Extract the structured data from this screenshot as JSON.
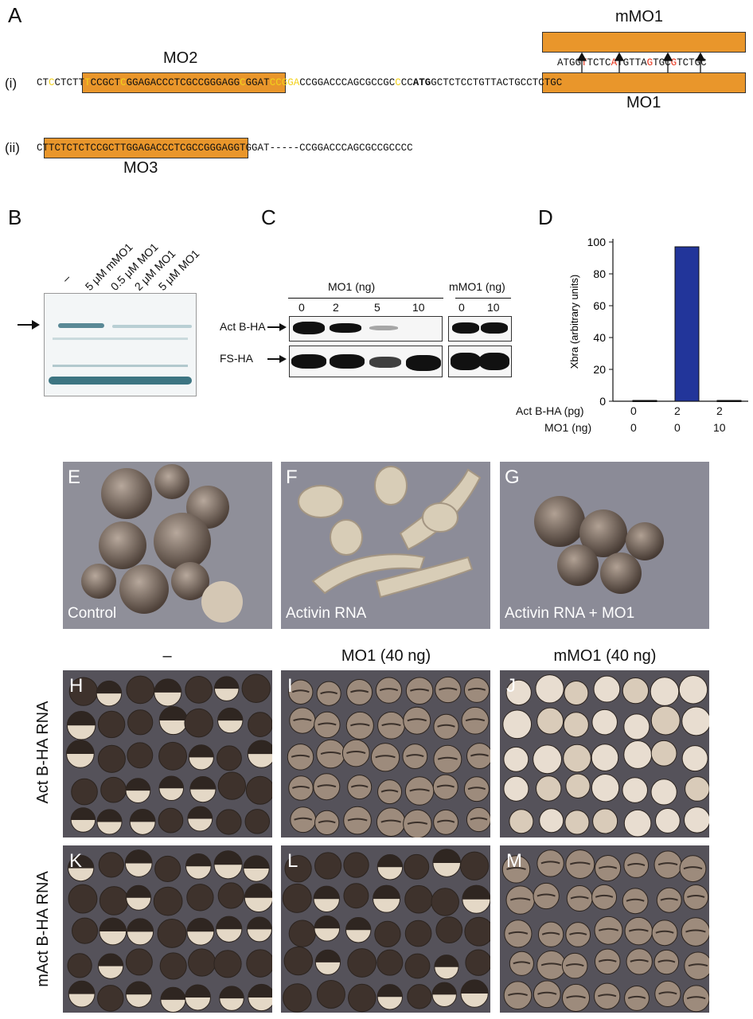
{
  "panelA": {
    "label": "A",
    "row_i": "(i)",
    "row_ii": "(ii)",
    "mo1_title": "MO1",
    "mo2_title": "MO2",
    "mo3_title": "MO3",
    "mmo1_title": "mMO1",
    "mmo1_seq_parts": [
      "ATGG",
      "T",
      "TCTC",
      "A",
      "TGTTA",
      "G",
      "TGC",
      "G",
      "TCTGC"
    ],
    "seq_i_pre": [
      "CT",
      "C",
      "CTCT"
    ],
    "seq_i_mo2_parts": [
      "T",
      "T",
      "CCGCT",
      "C",
      "GGAGACCCTCGCCGGG"
    ],
    "seq_i_mid_parts": [
      "AGG",
      "C",
      "GGAT",
      "CCGGA",
      "CCGGACCCAGCGCCGC",
      "C",
      "CC"
    ],
    "seq_i_mo1_start": "ATG",
    "seq_i_mo1_rest": "GCTCTCCTGTTACTGCCTCTGC",
    "seq_ii_pre": "C",
    "seq_ii_mo3": "TTCTCTCTCCGCTTGGAGACCCTCG",
    "seq_ii_post": "CCGGGAGGTGGAT-----CCGGACCCAGCGCCGCCCC"
  },
  "panelB": {
    "label": "B",
    "lanes": [
      "–",
      "5 μM mMO1",
      "0.5 μM MO1",
      "2 μM MO1",
      "5 μM MO1"
    ]
  },
  "panelC": {
    "label": "C",
    "mo1_header": "MO1 (ng)",
    "mmo1_header": "mMO1 (ng)",
    "mo1_doses": [
      "0",
      "2",
      "5",
      "10"
    ],
    "mmo1_doses": [
      "0",
      "10"
    ],
    "row1": "Act B-HA",
    "row2": "FS-HA"
  },
  "panelD": {
    "label": "D",
    "row1_label": "Act B-HA (pg)",
    "row2_label": "MO1 (ng)",
    "row1_values": [
      "0",
      "2",
      "2"
    ],
    "row2_values": [
      "0",
      "0",
      "10"
    ]
  },
  "chart_data": {
    "type": "bar",
    "categories": [
      "Act B-HA 0 pg / MO1 0 ng",
      "Act B-HA 2 pg / MO1 0 ng",
      "Act B-HA 2 pg / MO1 10 ng"
    ],
    "values": [
      0.5,
      97,
      0.5
    ],
    "title": "",
    "xlabel": "",
    "ylabel": "Xbra (arbitrary units)",
    "ylim": [
      0,
      100
    ],
    "yticks": [
      "0",
      "20",
      "40",
      "60",
      "80",
      "100"
    ],
    "bar_color": "#22359a"
  },
  "panelEFG": {
    "E": {
      "label": "E",
      "caption": "Control"
    },
    "F": {
      "label": "F",
      "caption": "Activin RNA"
    },
    "G": {
      "label": "G",
      "caption": "Activin RNA + MO1"
    }
  },
  "grid": {
    "col_headers": [
      "–",
      "MO1 (40 ng)",
      "mMO1 (40 ng)"
    ],
    "row_headers": [
      "Act B-HA RNA",
      "mAct B-HA RNA"
    ],
    "panel_labels": [
      "H",
      "I",
      "J",
      "K",
      "L",
      "M"
    ]
  }
}
